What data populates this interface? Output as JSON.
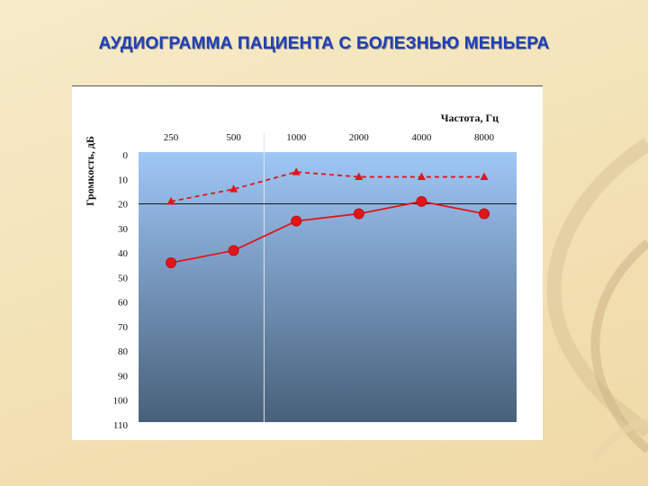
{
  "slide": {
    "title": "АУДИОГРАММА ПАЦИЕНТА С БОЛЕЗНЬЮ МЕНЬЕРА"
  },
  "colors": {
    "title": "#1f3fb8",
    "series": "#e0161b",
    "plot_top": "#9fc7f7",
    "plot_bottom": "#48607a"
  },
  "chart_data": {
    "type": "line",
    "title": "",
    "xlabel": "Частота, Гц",
    "ylabel": "Громкость, дБ",
    "x_axis_position": "top",
    "y_inverted": true,
    "categories": [
      "250",
      "500",
      "1000",
      "2000",
      "4000",
      "8000"
    ],
    "yticks": [
      "0",
      "10",
      "20",
      "30",
      "40",
      "50",
      "60",
      "70",
      "80",
      "90",
      "100",
      "110"
    ],
    "ylim": [
      0,
      110
    ],
    "reference_line_y": 20,
    "series": [
      {
        "style": "solid-circle",
        "values": [
          44,
          39,
          27,
          24,
          19,
          24
        ]
      },
      {
        "style": "dashed-triangle",
        "values": [
          19,
          14,
          7,
          9,
          9,
          9
        ]
      }
    ]
  }
}
